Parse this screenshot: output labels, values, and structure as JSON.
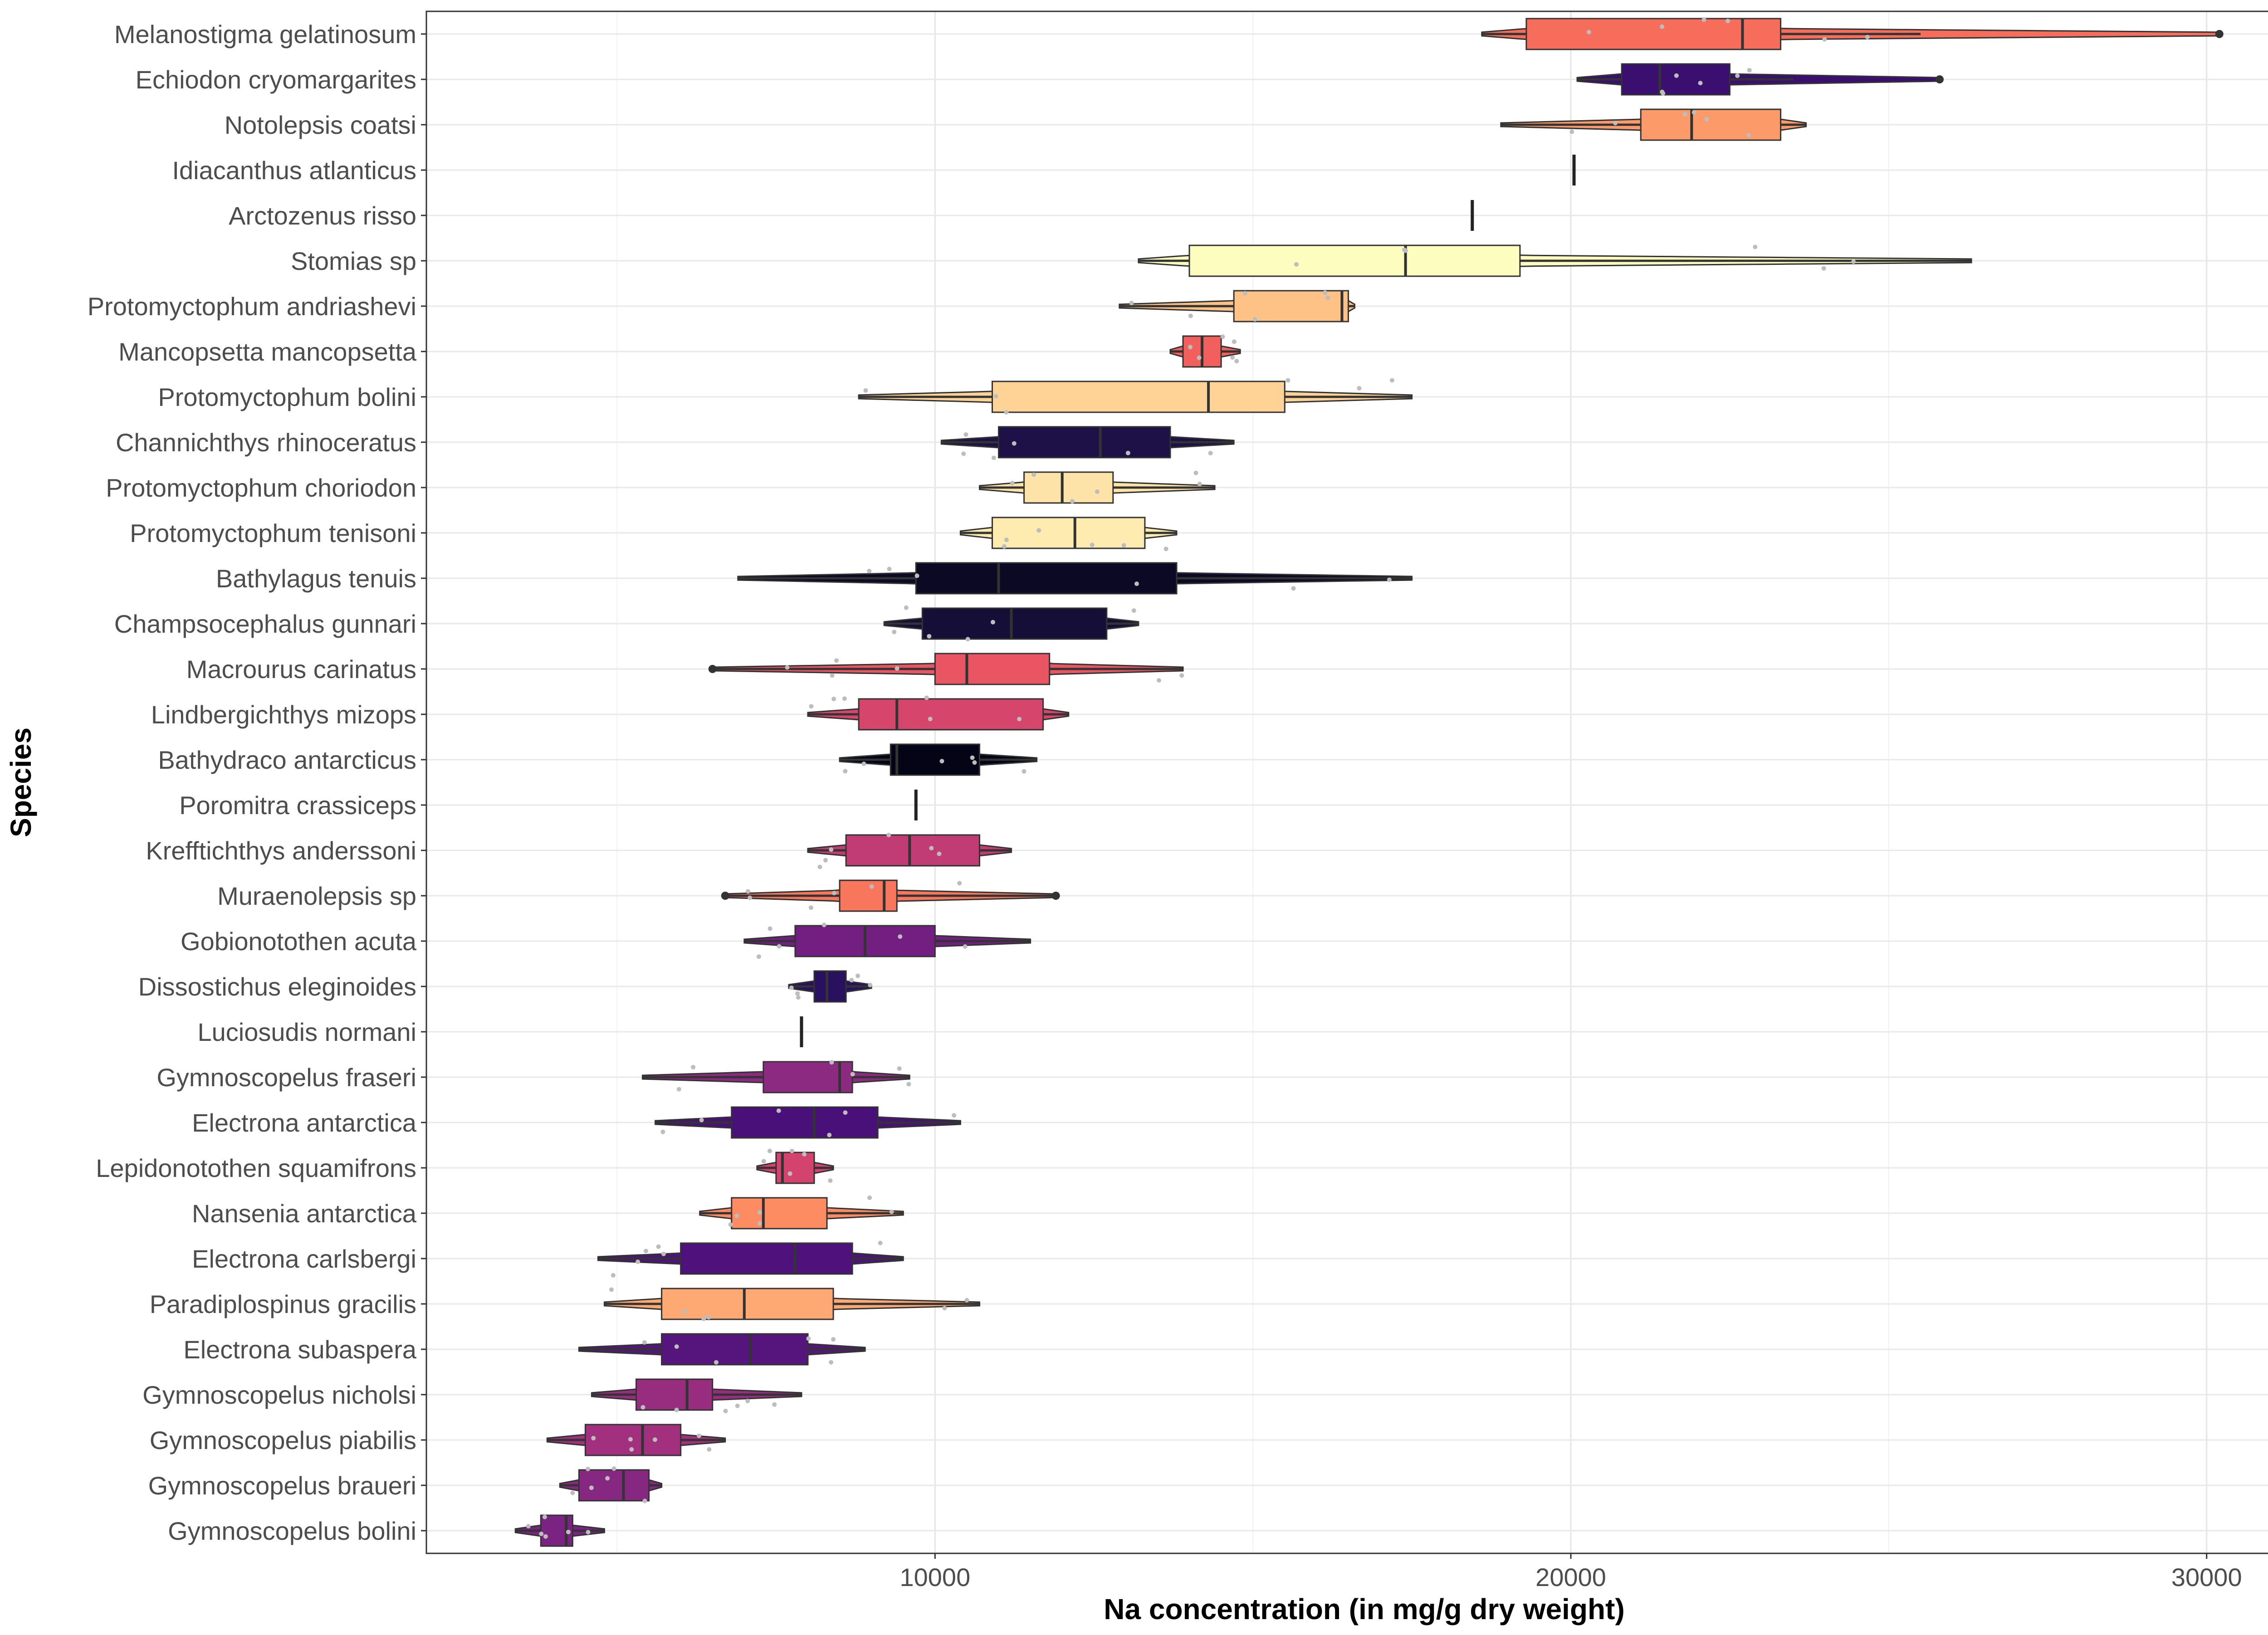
{
  "chart_data": {
    "type": "boxplot",
    "title": "",
    "xlabel": "Na concentration (in mg/g dry weight)",
    "ylabel": "Species",
    "xlim": [
      2000,
      31500
    ],
    "xticks": [
      10000,
      20000,
      30000
    ],
    "xtick_labels": [
      "10000",
      "20000",
      "30000"
    ],
    "grid": true,
    "legend": "none",
    "box_outline_color": "#333333",
    "series": [
      {
        "name": "Melanostigma gelatinosum",
        "min": 18600,
        "q1": 19300,
        "median": 22700,
        "q3": 23300,
        "max": 25500,
        "outliers": [
          30200
        ],
        "color": "#F66E5B"
      },
      {
        "name": "Echiodon cryomargarites",
        "min": 20100,
        "q1": 20800,
        "median": 21400,
        "q3": 22500,
        "max": 23500,
        "outliers": [
          25800
        ],
        "color": "#3B0F70"
      },
      {
        "name": "Notolepsis coatsi",
        "min": 18900,
        "q1": 21100,
        "median": 21900,
        "q3": 23300,
        "max": 23700,
        "outliers": [],
        "color": "#FD9A6A"
      },
      {
        "name": "Idiacanthus atlanticus",
        "min": 20050,
        "q1": 20050,
        "median": 20050,
        "q3": 20050,
        "max": 20050,
        "outliers": [],
        "color": "#CE4071"
      },
      {
        "name": "Arctozenus risso",
        "min": 18450,
        "q1": 18450,
        "median": 18450,
        "q3": 18450,
        "max": 18450,
        "outliers": [],
        "color": "#000004"
      },
      {
        "name": "Stomias sp",
        "min": 13200,
        "q1": 14000,
        "median": 17400,
        "q3": 19200,
        "max": 26300,
        "outliers": [],
        "color": "#FCFDBF"
      },
      {
        "name": "Protomyctophum andriashevi",
        "min": 12900,
        "q1": 14700,
        "median": 16400,
        "q3": 16500,
        "max": 16600,
        "outliers": [],
        "color": "#FEC287"
      },
      {
        "name": "Mancopsetta mancopsetta",
        "min": 13700,
        "q1": 13900,
        "median": 14200,
        "q3": 14500,
        "max": 14800,
        "outliers": [],
        "color": "#F1605D"
      },
      {
        "name": "Protomyctophum bolini",
        "min": 8800,
        "q1": 10900,
        "median": 14300,
        "q3": 15500,
        "max": 17500,
        "outliers": [],
        "color": "#FED395"
      },
      {
        "name": "Channichthys rhinoceratus",
        "min": 10100,
        "q1": 11000,
        "median": 12600,
        "q3": 13700,
        "max": 14700,
        "outliers": [],
        "color": "#1D1147"
      },
      {
        "name": "Protomyctophum choriodon",
        "min": 10700,
        "q1": 11400,
        "median": 12000,
        "q3": 12800,
        "max": 14400,
        "outliers": [],
        "color": "#FEE3A8"
      },
      {
        "name": "Protomyctophum tenisoni",
        "min": 10400,
        "q1": 10900,
        "median": 12200,
        "q3": 13300,
        "max": 13800,
        "outliers": [],
        "color": "#FEEBAF"
      },
      {
        "name": "Bathylagus tenuis",
        "min": 6900,
        "q1": 9700,
        "median": 11000,
        "q3": 13800,
        "max": 17500,
        "outliers": [],
        "color": "#0B0924"
      },
      {
        "name": "Champsocephalus gunnari",
        "min": 9200,
        "q1": 9800,
        "median": 11200,
        "q3": 12700,
        "max": 13200,
        "outliers": [],
        "color": "#150E37"
      },
      {
        "name": "Macrourus carinatus",
        "min": 6500,
        "q1": 10000,
        "median": 10500,
        "q3": 11800,
        "max": 13900,
        "outliers": [
          6500
        ],
        "color": "#E95562"
      },
      {
        "name": "Lindbergichthys mizops",
        "min": 8000,
        "q1": 8800,
        "median": 9400,
        "q3": 11700,
        "max": 12100,
        "outliers": [],
        "color": "#D6456C"
      },
      {
        "name": "Bathydraco antarcticus",
        "min": 8500,
        "q1": 9300,
        "median": 9400,
        "q3": 10700,
        "max": 11600,
        "outliers": [],
        "color": "#050416"
      },
      {
        "name": "Poromitra crassiceps",
        "min": 9700,
        "q1": 9700,
        "median": 9700,
        "q3": 9700,
        "max": 9700,
        "outliers": [],
        "color": "#B73779"
      },
      {
        "name": "Krefftichthys anderssoni",
        "min": 8000,
        "q1": 8600,
        "median": 9600,
        "q3": 10700,
        "max": 11200,
        "outliers": [],
        "color": "#C13B75"
      },
      {
        "name": "Muraenolepsis sp",
        "min": 6700,
        "q1": 8500,
        "median": 9200,
        "q3": 9400,
        "max": 11900,
        "outliers": [
          6700,
          11900
        ],
        "color": "#F8765C"
      },
      {
        "name": "Gobionotothen acuta",
        "min": 7000,
        "q1": 7800,
        "median": 8900,
        "q3": 10000,
        "max": 11500,
        "outliers": [],
        "color": "#721F81"
      },
      {
        "name": "Dissostichus eleginoides",
        "min": 7700,
        "q1": 8100,
        "median": 8300,
        "q3": 8600,
        "max": 9000,
        "outliers": [],
        "color": "#2A115F"
      },
      {
        "name": "Luciosudis normani",
        "min": 7900,
        "q1": 7900,
        "median": 7900,
        "q3": 7900,
        "max": 7900,
        "outliers": [],
        "color": "#6A1C81"
      },
      {
        "name": "Gymnoscopelus fraseri",
        "min": 5400,
        "q1": 7300,
        "median": 8500,
        "q3": 8700,
        "max": 9600,
        "outliers": [],
        "color": "#8C2981"
      },
      {
        "name": "Electrona antarctica",
        "min": 5600,
        "q1": 6800,
        "median": 8100,
        "q3": 9100,
        "max": 10400,
        "outliers": [],
        "color": "#4A1079"
      },
      {
        "name": "Lepidonotothen squamifrons",
        "min": 7200,
        "q1": 7500,
        "median": 7600,
        "q3": 8100,
        "max": 8400,
        "outliers": [],
        "color": "#D3436E"
      },
      {
        "name": "Nansenia antarctica",
        "min": 6300,
        "q1": 6800,
        "median": 7300,
        "q3": 8300,
        "max": 9500,
        "outliers": [],
        "color": "#FE8C63"
      },
      {
        "name": "Electrona carlsbergi",
        "min": 4700,
        "q1": 6000,
        "median": 7800,
        "q3": 8700,
        "max": 9500,
        "outliers": [],
        "color": "#4F117B"
      },
      {
        "name": "Paradiplospinus gracilis",
        "min": 4800,
        "q1": 5700,
        "median": 7000,
        "q3": 8400,
        "max": 10700,
        "outliers": [],
        "color": "#FEA873"
      },
      {
        "name": "Electrona subaspera",
        "min": 4400,
        "q1": 5700,
        "median": 7100,
        "q3": 8000,
        "max": 8900,
        "outliers": [],
        "color": "#56147D"
      },
      {
        "name": "Gymnoscopelus nicholsi",
        "min": 4600,
        "q1": 5300,
        "median": 6100,
        "q3": 6500,
        "max": 7900,
        "outliers": [],
        "color": "#982D80"
      },
      {
        "name": "Gymnoscopelus piabilis",
        "min": 3900,
        "q1": 4500,
        "median": 5400,
        "q3": 6000,
        "max": 6700,
        "outliers": [],
        "color": "#A3307E"
      },
      {
        "name": "Gymnoscopelus braueri",
        "min": 4100,
        "q1": 4400,
        "median": 5100,
        "q3": 5500,
        "max": 5700,
        "outliers": [],
        "color": "#862781"
      },
      {
        "name": "Gymnoscopelus bolini",
        "min": 3400,
        "q1": 3800,
        "median": 4200,
        "q3": 4300,
        "max": 4800,
        "outliers": [],
        "color": "#7B2382"
      }
    ]
  }
}
